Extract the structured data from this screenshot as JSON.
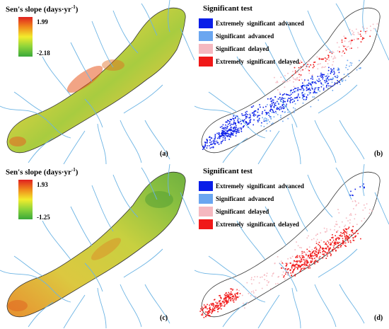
{
  "panels": {
    "a": {
      "letter": "(a)",
      "legend_title": "Sen's slope (days·yr",
      "legend_exp": "-1",
      "legend_close": ")",
      "max_label": "1.99",
      "min_label": "-2.18",
      "gradient": [
        "#e02020",
        "#f08a1c",
        "#f2ec2c",
        "#8cd33a",
        "#3aa83a"
      ]
    },
    "b": {
      "letter": "(b)",
      "legend_title": "Significant test",
      "items": [
        {
          "label": "Extremely significant advanced",
          "color": "#0a1ee8"
        },
        {
          "label": "Significant advanced",
          "color": "#6aa6f0"
        },
        {
          "label": "Significant delayed",
          "color": "#f5b8c0"
        },
        {
          "label": "Extremely significant delayed",
          "color": "#f01818"
        }
      ]
    },
    "c": {
      "letter": "(c)",
      "legend_title": "Sen's slope (days·yr",
      "legend_exp": "-1",
      "legend_close": ")",
      "max_label": "1.93",
      "min_label": "-1.25",
      "gradient": [
        "#e02020",
        "#f08a1c",
        "#f2ec2c",
        "#8cd33a",
        "#3aa83a"
      ]
    },
    "d": {
      "letter": "(d)",
      "legend_title": "Significant test",
      "items": [
        {
          "label": "Extremely significant advanced",
          "color": "#0a1ee8"
        },
        {
          "label": "Significant advanced",
          "color": "#6aa6f0"
        },
        {
          "label": "Significant delayed",
          "color": "#f5b8c0"
        },
        {
          "label": "Extremely significant delayed",
          "color": "#f01818"
        }
      ]
    }
  },
  "colors": {
    "river": "#6cb4e4",
    "outline": "#333333"
  }
}
